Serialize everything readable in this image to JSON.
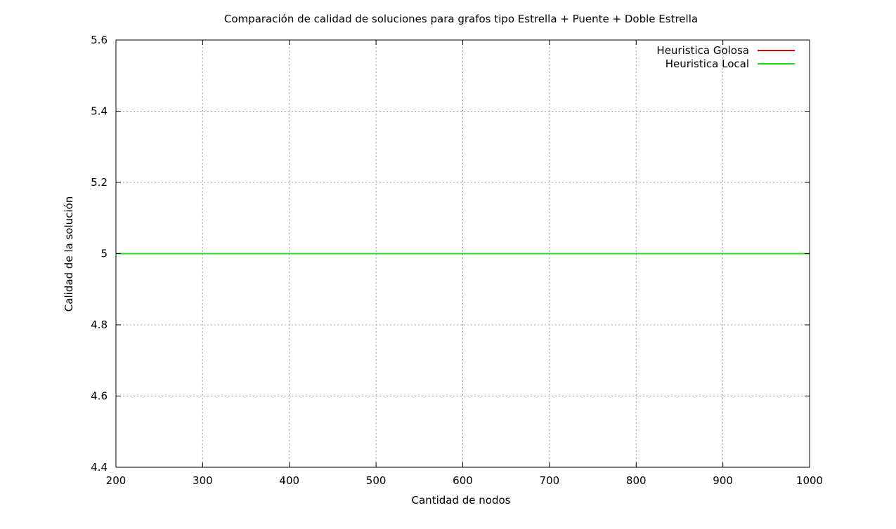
{
  "chart_data": {
    "type": "line",
    "title": "Comparación de calidad de soluciones para grafos tipo Estrella + Puente + Doble Estrella",
    "xlabel": "Cantidad de nodos",
    "ylabel": "Calidad de la solución",
    "xlim": [
      200,
      1000
    ],
    "ylim": [
      4.4,
      5.6
    ],
    "x_ticks": [
      200,
      300,
      400,
      500,
      600,
      700,
      800,
      900,
      1000
    ],
    "x_tick_labels": [
      "200",
      "300",
      "400",
      "500",
      "600",
      "700",
      "800",
      "900",
      "1000"
    ],
    "y_ticks": [
      4.4,
      4.6,
      4.8,
      5.0,
      5.2,
      5.4,
      5.6
    ],
    "y_tick_labels": [
      "4.4",
      "4.6",
      "4.8",
      "5",
      "5.2",
      "5.4",
      "5.6"
    ],
    "grid": true,
    "legend_position": "top-right",
    "series": [
      {
        "name": "Heuristica Golosa",
        "color": "#e00000",
        "x": [
          200,
          1000
        ],
        "y": [
          5,
          5
        ]
      },
      {
        "name": "Heuristica Local",
        "color": "#22dd22",
        "x": [
          200,
          1000
        ],
        "y": [
          5,
          5
        ]
      }
    ]
  }
}
